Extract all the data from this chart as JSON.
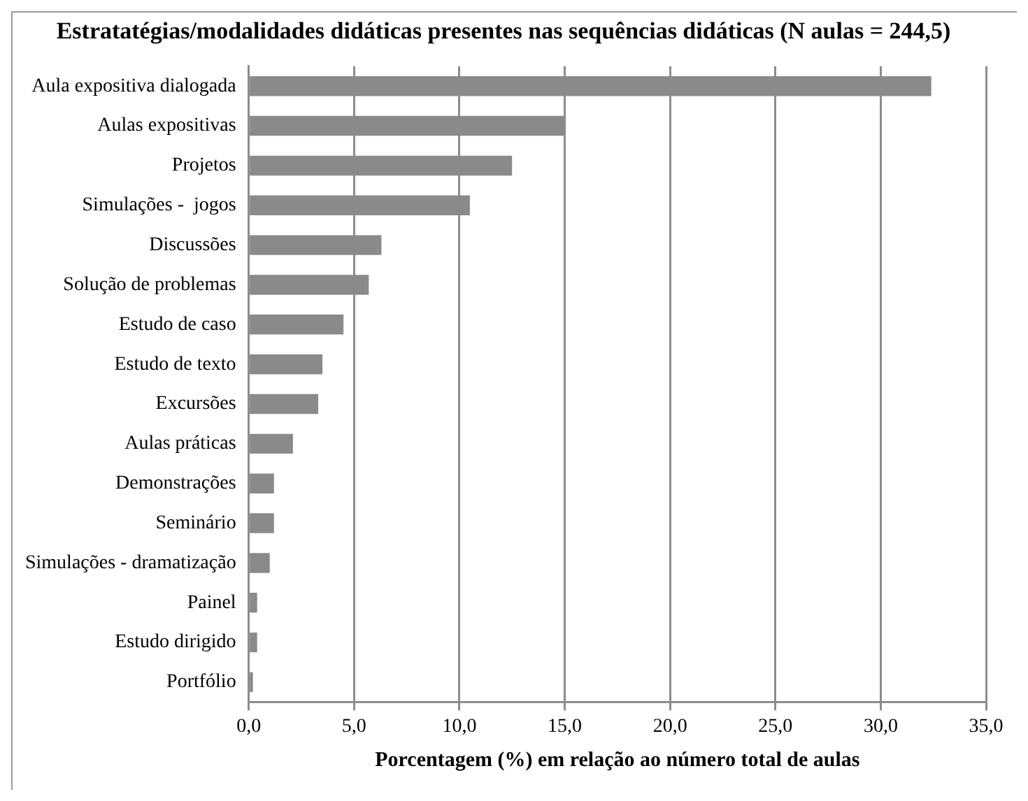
{
  "chart_data": {
    "type": "bar",
    "orientation": "horizontal",
    "title": "Estratatégias/modalidades didáticas presentes nas sequências didáticas (N aulas = 244,5)",
    "xlabel": "Porcentagem (%) em relação ao número total de aulas",
    "categories": [
      "Aula expositiva dialogada",
      "Aulas expositivas",
      "Projetos",
      "Simulações -  jogos",
      "Discussões",
      "Solução de problemas",
      "Estudo de caso",
      "Estudo de texto",
      "Excursões",
      "Aulas práticas",
      "Demonstrações",
      "Seminário",
      "Simulações - dramatização",
      "Painel",
      "Estudo dirigido",
      "Portfólio"
    ],
    "values": [
      32.4,
      15.0,
      12.5,
      10.5,
      6.3,
      5.7,
      4.5,
      3.5,
      3.3,
      2.1,
      1.2,
      1.2,
      1.0,
      0.4,
      0.4,
      0.2
    ],
    "color": "#8a8a8a",
    "xlim": [
      0,
      35
    ],
    "xticks": [
      {
        "value": 0,
        "label": "0,0"
      },
      {
        "value": 5,
        "label": "5,0"
      },
      {
        "value": 10,
        "label": "10,0"
      },
      {
        "value": 15,
        "label": "15,0"
      },
      {
        "value": 20,
        "label": "20,0"
      },
      {
        "value": 25,
        "label": "25,0"
      },
      {
        "value": 30,
        "label": "30,0"
      },
      {
        "value": 35,
        "label": "35,0"
      }
    ],
    "grid": "x",
    "legend": false
  }
}
